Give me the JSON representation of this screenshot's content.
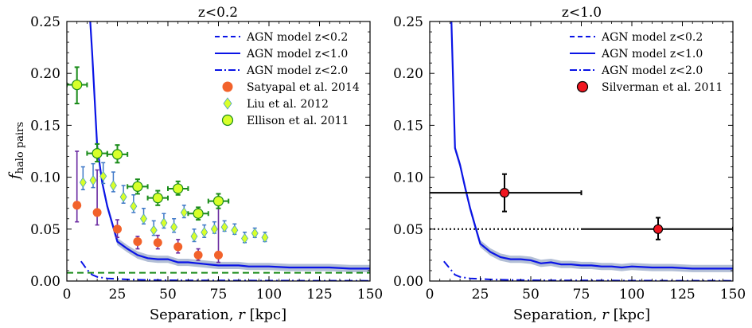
{
  "chart_data": [
    {
      "type": "line",
      "title": "z<0.2",
      "xlabel": "Separation, $r$ [kpc]",
      "xlabel_parts": {
        "pre": "Separation, ",
        "var": "r",
        "post": " [kpc]"
      },
      "ylabel": "f_halo pairs",
      "ylabel_parts": {
        "main": "f",
        "sub": "halo pairs"
      },
      "xlim": [
        0,
        150
      ],
      "ylim": [
        0,
        0.25
      ],
      "xticks": [
        0,
        25,
        50,
        75,
        100,
        125,
        150
      ],
      "yticks": [
        "0.00",
        "0.05",
        "0.10",
        "0.15",
        "0.20",
        "0.25"
      ],
      "legend_position": "top-right",
      "legend": [
        {
          "label": "AGN model z<0.2",
          "kind": "line",
          "dash": "dashed",
          "color": "#0a14e6"
        },
        {
          "label": "AGN model z<1.0",
          "kind": "line",
          "dash": "solid",
          "color": "#0a14e6"
        },
        {
          "label": "AGN model z<2.0",
          "kind": "line",
          "dash": "dashdot",
          "color": "#0a14e6"
        },
        {
          "label": "Satyapal et al. 2014",
          "kind": "marker",
          "marker": "circle",
          "color": "#f2622b"
        },
        {
          "label": "Liu et al. 2012",
          "kind": "marker",
          "marker": "diamond",
          "color": "#d8ff2a"
        },
        {
          "label": "Ellison et al. 2011",
          "kind": "marker",
          "marker": "circle",
          "color": "#d8ff2a"
        }
      ],
      "models": {
        "z10": {
          "x": [
            5,
            10,
            12.5,
            15,
            17.5,
            20,
            22.5,
            25,
            30,
            35,
            40,
            45,
            50,
            55,
            60,
            65,
            70,
            75,
            80,
            85,
            90,
            95,
            100,
            110,
            120,
            130,
            140,
            150
          ],
          "y": [
            0.4,
            0.3,
            0.22,
            0.13,
            0.095,
            0.072,
            0.055,
            0.038,
            0.031,
            0.025,
            0.022,
            0.021,
            0.021,
            0.018,
            0.018,
            0.017,
            0.016,
            0.015,
            0.015,
            0.015,
            0.014,
            0.014,
            0.014,
            0.013,
            0.013,
            0.013,
            0.012,
            0.012
          ],
          "band": 0.0035
        },
        "z20": {
          "x": [
            7,
            10,
            12.5,
            15,
            20,
            25,
            30,
            40,
            50,
            60,
            80,
            100,
            120,
            150
          ],
          "y": [
            0.019,
            0.011,
            0.006,
            0.004,
            0.0025,
            0.002,
            0.0015,
            0.001,
            0.0008,
            0.0006,
            0.0005,
            0.0004,
            0.0003,
            0.0002
          ]
        },
        "z02_level": 0.008
      },
      "satyapal": [
        {
          "x": 5,
          "y": 0.073,
          "lo": 0.057,
          "hi": 0.125
        },
        {
          "x": 15,
          "y": 0.066,
          "lo": 0.054,
          "hi": 0.107
        },
        {
          "x": 25,
          "y": 0.05,
          "lo": 0.042,
          "hi": 0.059
        },
        {
          "x": 35,
          "y": 0.038,
          "lo": 0.031,
          "hi": 0.043
        },
        {
          "x": 45,
          "y": 0.037,
          "lo": 0.031,
          "hi": 0.044
        },
        {
          "x": 55,
          "y": 0.033,
          "lo": 0.027,
          "hi": 0.04
        },
        {
          "x": 65,
          "y": 0.025,
          "lo": 0.02,
          "hi": 0.031
        },
        {
          "x": 75,
          "y": 0.025,
          "lo": 0.018,
          "hi": 0.075
        }
      ],
      "liu": [
        {
          "x": 8,
          "y": 0.095,
          "lo": 0.088,
          "hi": 0.11
        },
        {
          "x": 13,
          "y": 0.097,
          "lo": 0.09,
          "hi": 0.113
        },
        {
          "x": 18,
          "y": 0.101,
          "lo": 0.094,
          "hi": 0.114
        },
        {
          "x": 23,
          "y": 0.092,
          "lo": 0.086,
          "hi": 0.105
        },
        {
          "x": 28,
          "y": 0.081,
          "lo": 0.075,
          "hi": 0.092
        },
        {
          "x": 33,
          "y": 0.072,
          "lo": 0.066,
          "hi": 0.083
        },
        {
          "x": 38,
          "y": 0.06,
          "lo": 0.055,
          "hi": 0.07
        },
        {
          "x": 43,
          "y": 0.049,
          "lo": 0.044,
          "hi": 0.058
        },
        {
          "x": 48,
          "y": 0.056,
          "lo": 0.051,
          "hi": 0.065
        },
        {
          "x": 53,
          "y": 0.052,
          "lo": 0.047,
          "hi": 0.06
        },
        {
          "x": 58,
          "y": 0.066,
          "lo": 0.061,
          "hi": 0.073
        },
        {
          "x": 63,
          "y": 0.043,
          "lo": 0.038,
          "hi": 0.05
        },
        {
          "x": 68,
          "y": 0.047,
          "lo": 0.042,
          "hi": 0.054
        },
        {
          "x": 73,
          "y": 0.05,
          "lo": 0.046,
          "hi": 0.057
        },
        {
          "x": 78,
          "y": 0.052,
          "lo": 0.048,
          "hi": 0.058
        },
        {
          "x": 83,
          "y": 0.049,
          "lo": 0.045,
          "hi": 0.055
        },
        {
          "x": 88,
          "y": 0.041,
          "lo": 0.037,
          "hi": 0.047
        },
        {
          "x": 93,
          "y": 0.046,
          "lo": 0.042,
          "hi": 0.051
        },
        {
          "x": 98,
          "y": 0.042,
          "lo": 0.038,
          "hi": 0.047
        }
      ],
      "ellison": [
        {
          "x": 5,
          "y": 0.189,
          "xerr": 5,
          "lo": 0.171,
          "hi": 0.206
        },
        {
          "x": 15,
          "y": 0.123,
          "xerr": 5,
          "lo": 0.115,
          "hi": 0.132
        },
        {
          "x": 25,
          "y": 0.122,
          "xerr": 5,
          "lo": 0.114,
          "hi": 0.131
        },
        {
          "x": 35,
          "y": 0.091,
          "xerr": 5,
          "lo": 0.084,
          "hi": 0.098
        },
        {
          "x": 45,
          "y": 0.08,
          "xerr": 5,
          "lo": 0.073,
          "hi": 0.087
        },
        {
          "x": 55,
          "y": 0.089,
          "xerr": 5,
          "lo": 0.083,
          "hi": 0.096
        },
        {
          "x": 65,
          "y": 0.065,
          "xerr": 5,
          "lo": 0.059,
          "hi": 0.071
        },
        {
          "x": 75,
          "y": 0.077,
          "xerr": 5,
          "lo": 0.07,
          "hi": 0.084
        }
      ],
      "baseline": {
        "y": 0.008,
        "color": "#1a8c1a"
      },
      "colors": {
        "model": "#0a14e6",
        "band": "#b3bfd6",
        "satyapal": "#f2622b",
        "satyapal_err": "#6a2aa0",
        "liu": "#d8ff2a",
        "liu_err": "#3f78c8",
        "liu_edge": "#4aa0c0",
        "ellison": "#d8ff2a",
        "ellison_err": "#1a8c1a"
      }
    },
    {
      "type": "line",
      "title": "z<1.0",
      "xlabel": "Separation, $r$ [kpc]",
      "xlabel_parts": {
        "pre": "Separation, ",
        "var": "r",
        "post": " [kpc]"
      },
      "xlim": [
        0,
        150
      ],
      "ylim": [
        0,
        0.25
      ],
      "xticks": [
        0,
        25,
        50,
        75,
        100,
        125,
        150
      ],
      "yticks": [
        "0.00",
        "0.05",
        "0.10",
        "0.15",
        "0.20",
        "0.25"
      ],
      "legend_position": "top-right",
      "legend": [
        {
          "label": "AGN model z<0.2",
          "kind": "line",
          "dash": "dashed",
          "color": "#0a14e6"
        },
        {
          "label": "AGN model z<1.0",
          "kind": "line",
          "dash": "solid",
          "color": "#0a14e6"
        },
        {
          "label": "AGN model z<2.0",
          "kind": "line",
          "dash": "dashdot",
          "color": "#0a14e6"
        },
        {
          "label": "Silverman et al. 2011",
          "kind": "marker",
          "marker": "circle",
          "color": "#f01620"
        }
      ],
      "models": {
        "z10": {
          "x": [
            5,
            10,
            12.5,
            15,
            17.5,
            20,
            22.5,
            25,
            30,
            35,
            40,
            45,
            50,
            55,
            60,
            65,
            70,
            75,
            80,
            85,
            90,
            95,
            100,
            110,
            120,
            130,
            140,
            150
          ],
          "y": [
            0.4,
            0.3,
            0.128,
            0.112,
            0.09,
            0.07,
            0.053,
            0.036,
            0.028,
            0.023,
            0.021,
            0.021,
            0.02,
            0.017,
            0.018,
            0.016,
            0.016,
            0.015,
            0.015,
            0.014,
            0.014,
            0.013,
            0.014,
            0.013,
            0.013,
            0.012,
            0.012,
            0.012
          ],
          "band": 0.0035
        },
        "z20": {
          "x": [
            7,
            10,
            12.5,
            15,
            20,
            25,
            30,
            40,
            50,
            60,
            80,
            100,
            120,
            150
          ],
          "y": [
            0.019,
            0.012,
            0.006,
            0.004,
            0.0025,
            0.002,
            0.0015,
            0.001,
            0.0008,
            0.0006,
            0.0005,
            0.0004,
            0.0003,
            0.0002
          ]
        }
      },
      "silverman": [
        {
          "x": 37,
          "y": 0.085,
          "xlo": 0,
          "xhi": 75,
          "lo": 0.067,
          "hi": 0.103
        },
        {
          "x": 113,
          "y": 0.05,
          "xlo": 75,
          "xhi": 150,
          "lo": 0.04,
          "hi": 0.061
        }
      ],
      "reference": {
        "y": 0.05,
        "xlo": 0,
        "xhi": 75,
        "style": "dotted"
      },
      "colors": {
        "model": "#0a14e6",
        "band": "#b3bfd6",
        "silverman": "#f01620"
      }
    }
  ]
}
